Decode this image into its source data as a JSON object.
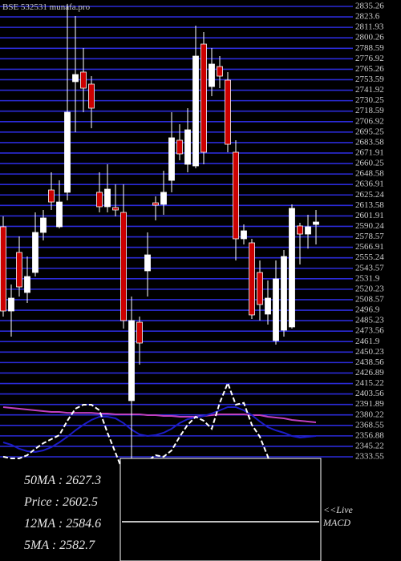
{
  "chart_data": {
    "type": "candlestick",
    "title": "BSE 532531 munafa.pro",
    "ylim": [
      2333.55,
      2835.26
    ],
    "yticks": [
      2835.26,
      2823.6,
      2811.93,
      2800.26,
      2788.59,
      2776.92,
      2765.26,
      2753.59,
      2741.92,
      2730.25,
      2718.59,
      2706.92,
      2695.25,
      2683.58,
      2671.91,
      2660.25,
      2648.58,
      2636.91,
      2625.24,
      2613.58,
      2601.91,
      2590.24,
      2578.57,
      2566.91,
      2555.24,
      2543.57,
      2531.9,
      2520.23,
      2508.57,
      2496.9,
      2485.23,
      2473.56,
      2461.9,
      2450.23,
      2438.56,
      2426.89,
      2415.22,
      2403.56,
      2391.89,
      2380.22,
      2368.55,
      2356.88,
      2345.22,
      2333.55
    ],
    "grid": true,
    "grid_color": "#2b2bd8",
    "up_color": "#ffffff",
    "down_color": "#cc0000",
    "open": [
      2589.8,
      2496.0,
      2561.2,
      2516.6,
      2538.9,
      2583.5,
      2630.8,
      2589.8,
      2628.2,
      2751.4,
      2762.1,
      2748.7,
      2628.2,
      2612.1,
      2611.2,
      2605.8,
      2396.1,
      2483.5,
      2540.7,
      2616.5,
      2614.8,
      2641.5,
      2686.2,
      2659.4,
      2657.6,
      2793.3,
      2746.0,
      2768.3,
      2753.1,
      2672.8,
      2576.4,
      2571.9,
      2538.9,
      2492.5,
      2463.0,
      2474.6,
      2478.2,
      2590.7,
      2581.7,
      2592.4
    ],
    "high": [
      2601.4,
      2525.5,
      2579.0,
      2556.7,
      2605.8,
      2608.5,
      2650.5,
      2641.5,
      2838.0,
      2824.5,
      2788.8,
      2757.6,
      2650.5,
      2659.4,
      2637.1,
      2637.1,
      2512.1,
      2489.8,
      2583.5,
      2623.7,
      2652.3,
      2717.4,
      2704.0,
      2721.9,
      2813.8,
      2806.7,
      2788.8,
      2779.9,
      2762.1,
      2686.2,
      2592.4,
      2576.4,
      2552.3,
      2530.0,
      2552.3,
      2563.9,
      2614.8,
      2594.2,
      2603.2,
      2608.5
    ],
    "low": [
      2489.8,
      2467.5,
      2512.1,
      2505.0,
      2534.4,
      2574.6,
      2608.5,
      2588.0,
      2619.2,
      2695.1,
      2717.4,
      2699.6,
      2605.8,
      2605.8,
      2601.4,
      2476.4,
      2330.0,
      2436.2,
      2512.1,
      2596.9,
      2603.2,
      2628.2,
      2663.9,
      2650.5,
      2654.9,
      2659.4,
      2735.3,
      2744.2,
      2672.8,
      2552.3,
      2570.1,
      2487.1,
      2485.3,
      2480.9,
      2458.5,
      2467.5,
      2476.4,
      2547.8,
      2565.6,
      2570.1
    ],
    "close": [
      2496.0,
      2510.3,
      2522.8,
      2534.4,
      2583.5,
      2599.6,
      2617.4,
      2617.4,
      2717.4,
      2759.4,
      2744.2,
      2721.9,
      2612.1,
      2631.7,
      2608.5,
      2485.3,
      2485.3,
      2460.3,
      2558.5,
      2613.9,
      2628.2,
      2688.9,
      2671.0,
      2697.8,
      2779.9,
      2672.8,
      2771.0,
      2757.6,
      2681.7,
      2576.4,
      2585.3,
      2491.6,
      2503.2,
      2510.3,
      2531.7,
      2556.7,
      2610.3,
      2581.7,
      2589.8,
      2595.1
    ],
    "overlays": [
      {
        "color": "#c040c0",
        "values": [
          2388.9,
          2388.0,
          2387.1,
          2386.2,
          2385.3,
          2384.4,
          2383.5,
          2383.5,
          2382.6,
          2382.6,
          2382.6,
          2382.6,
          2381.8,
          2381.8,
          2380.9,
          2380.9,
          2380.9,
          2380.9,
          2380.0,
          2380.0,
          2379.1,
          2379.1,
          2378.2,
          2378.2,
          2378.2,
          2379.1,
          2380.0,
          2380.9,
          2380.9,
          2380.9,
          2380.9,
          2380.0,
          2380.0,
          2378.2,
          2377.3,
          2376.4,
          2374.6,
          2373.7,
          2372.8,
          2371.9
        ]
      },
      {
        "color": "#1c1cc8",
        "values": [
          2349.6,
          2347.0,
          2342.5,
          2339.8,
          2338.9,
          2340.7,
          2344.3,
          2349.6,
          2355.9,
          2363.0,
          2369.3,
          2374.6,
          2378.2,
          2378.2,
          2376.4,
          2371.1,
          2363.9,
          2358.5,
          2356.8,
          2357.7,
          2360.3,
          2364.8,
          2371.1,
          2375.5,
          2377.3,
          2379.1,
          2381.8,
          2385.3,
          2388.9,
          2388.9,
          2385.3,
          2380.0,
          2372.8,
          2366.6,
          2363.0,
          2360.3,
          2356.8,
          2355.0,
          2355.9,
          2356.8
        ]
      },
      {
        "color": "#ffffff",
        "dash": true,
        "values": [
          2333.6,
          2331.8,
          2331.8,
          2335.3,
          2342.5,
          2348.7,
          2353.2,
          2357.7,
          2373.7,
          2387.1,
          2391.6,
          2391.6,
          2385.3,
          2360.3,
          2338.0,
          2315.7,
          2306.8,
          2306.8,
          2329.1,
          2335.3,
          2333.6,
          2340.7,
          2355.9,
          2369.3,
          2378.2,
          2373.7,
          2364.8,
          2393.6,
          2415.7,
          2391.6,
          2393.6,
          2369.3,
          2355.9,
          2333.6,
          2306.8,
          2306.8,
          2306.8,
          2315.7,
          2329.1,
          2331.8
        ]
      }
    ],
    "stats": [
      "50MA  : 2627.3",
      "Price  : 2602.5",
      "12MA  : 2584.6",
      "5MA  : 2582.7"
    ],
    "panel_label": [
      "<<Live",
      "MACD"
    ]
  }
}
